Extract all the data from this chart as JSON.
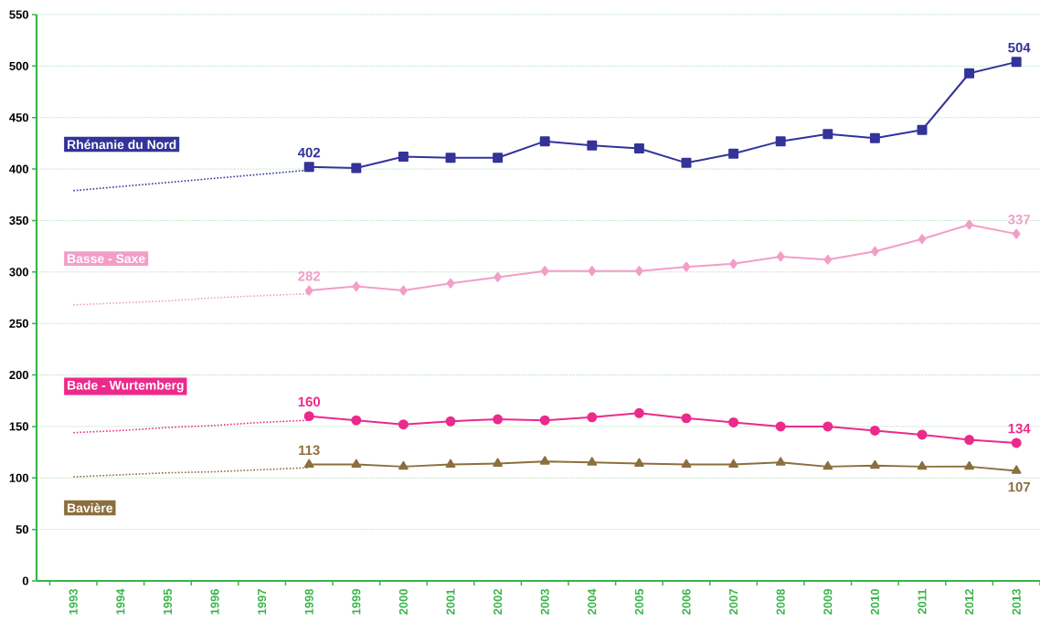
{
  "chart_data": {
    "type": "line",
    "categories": [
      "1993",
      "1994",
      "1995",
      "1996",
      "1997",
      "1998",
      "1999",
      "2000",
      "2001",
      "2002",
      "2003",
      "2004",
      "2005",
      "2006",
      "2007",
      "2008",
      "2009",
      "2010",
      "2011",
      "2012",
      "2013"
    ],
    "ylim": [
      0,
      550
    ],
    "yticks": [
      0,
      50,
      100,
      150,
      200,
      250,
      300,
      350,
      400,
      450,
      500,
      550
    ],
    "grid": "y",
    "series": [
      {
        "name": "Rhénanie du Nord",
        "color": "#333399",
        "marker": "square",
        "line_style": "solid",
        "values": [
          null,
          null,
          null,
          null,
          null,
          402,
          401,
          412,
          411,
          411,
          427,
          423,
          420,
          406,
          415,
          427,
          434,
          430,
          438,
          493,
          504
        ],
        "value_labels": [
          null,
          null,
          null,
          null,
          null,
          "402",
          null,
          null,
          null,
          null,
          null,
          null,
          null,
          null,
          null,
          null,
          null,
          null,
          null,
          null,
          "504"
        ]
      },
      {
        "name": "Basse - Saxe",
        "color": "#f29ec8",
        "marker": "diamond",
        "line_style": "solid",
        "values": [
          null,
          null,
          null,
          null,
          null,
          282,
          286,
          282,
          289,
          295,
          301,
          301,
          301,
          305,
          308,
          315,
          312,
          320,
          332,
          346,
          337
        ],
        "value_labels": [
          null,
          null,
          null,
          null,
          null,
          "282",
          null,
          null,
          null,
          null,
          null,
          null,
          null,
          null,
          null,
          null,
          null,
          null,
          null,
          null,
          "337"
        ]
      },
      {
        "name": "Bade - Wurtemberg",
        "color": "#ec2a8c",
        "marker": "circle",
        "line_style": "solid",
        "values": [
          null,
          null,
          null,
          null,
          null,
          160,
          156,
          152,
          155,
          157,
          156,
          159,
          163,
          158,
          154,
          150,
          150,
          146,
          142,
          137,
          134
        ],
        "value_labels": [
          null,
          null,
          null,
          null,
          null,
          "160",
          null,
          null,
          null,
          null,
          null,
          null,
          null,
          null,
          null,
          null,
          null,
          null,
          null,
          null,
          "134"
        ]
      },
      {
        "name": "Bavière",
        "color": "#8b6f3e",
        "marker": "triangle",
        "line_style": "solid",
        "values": [
          null,
          null,
          null,
          null,
          null,
          113,
          113,
          111,
          113,
          114,
          116,
          115,
          114,
          113,
          113,
          115,
          111,
          112,
          111,
          111,
          107
        ],
        "value_labels": [
          null,
          null,
          null,
          null,
          null,
          "113",
          null,
          null,
          null,
          null,
          null,
          null,
          null,
          null,
          null,
          null,
          null,
          null,
          null,
          null,
          "107"
        ]
      },
      {
        "color": "#333399",
        "marker": "none",
        "line_style": "dotted",
        "values": [
          379,
          383,
          387,
          391,
          395,
          399,
          null,
          null,
          null,
          null,
          null,
          null,
          null,
          null,
          null,
          null,
          null,
          null,
          null,
          null,
          null
        ]
      },
      {
        "color": "#f29ec8",
        "marker": "none",
        "line_style": "dotted",
        "values": [
          268,
          270,
          272,
          275,
          277,
          279,
          null,
          null,
          null,
          null,
          null,
          null,
          null,
          null,
          null,
          null,
          null,
          null,
          null,
          null,
          null
        ]
      },
      {
        "color": "#ec2a8c",
        "marker": "none",
        "line_style": "dotted",
        "values": [
          144,
          146,
          149,
          151,
          154,
          156,
          null,
          null,
          null,
          null,
          null,
          null,
          null,
          null,
          null,
          null,
          null,
          null,
          null,
          null,
          null
        ]
      },
      {
        "color": "#8b6f3e",
        "marker": "none",
        "line_style": "dotted",
        "values": [
          101,
          103,
          105,
          106,
          108,
          110,
          null,
          null,
          null,
          null,
          null,
          null,
          null,
          null,
          null,
          null,
          null,
          null,
          null,
          null,
          null
        ]
      }
    ]
  }
}
